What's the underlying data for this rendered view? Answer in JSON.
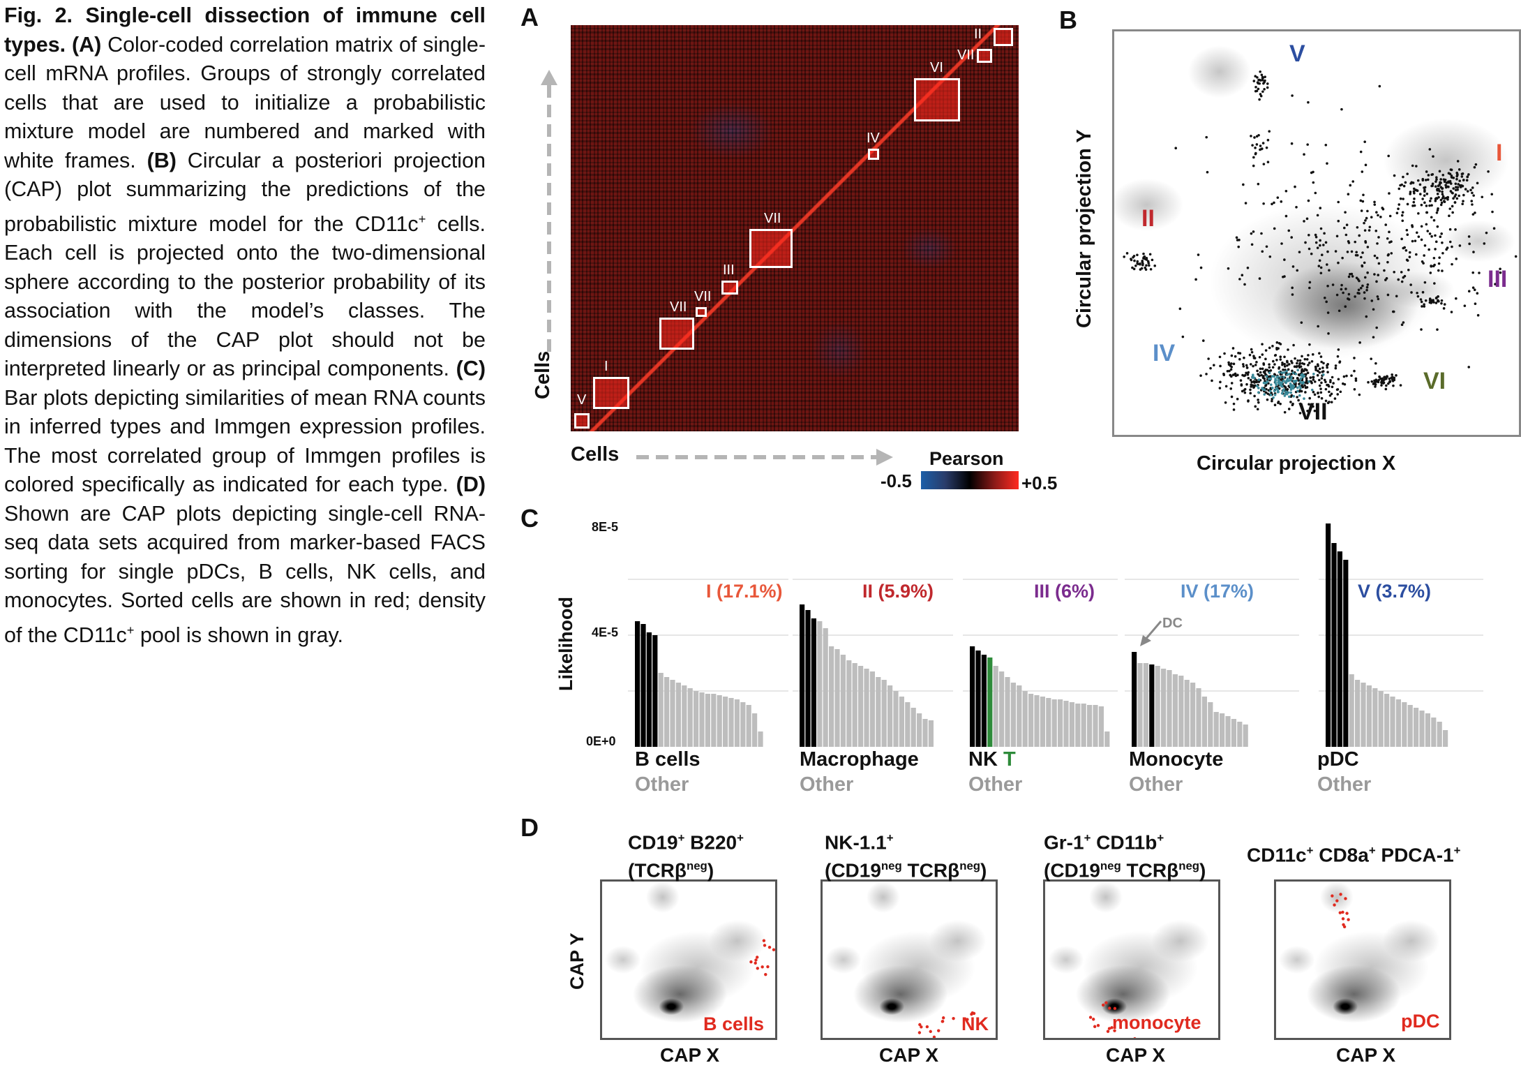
{
  "caption": {
    "fig_label": "Fig. 2.",
    "title": "Single-cell dissection of immune cell types.",
    "A_label": "(A)",
    "A_text": "Color-coded correlation matrix of single-cell mRNA profiles. Groups of strongly correlated cells that are used to initialize a probabilistic mixture model are numbered and marked with white frames.",
    "B_label": "(B)",
    "B_text_1": "Circular a posteriori projection (CAP) plot summarizing the predictions of the probabilistic mixture model for the CD11c",
    "B_sup": "+",
    "B_text_2": "cells. Each cell is projected onto the two-dimensional sphere according to the posterior probability of its association with the model’s classes. The dimensions of the CAP plot should not be interpreted linearly or as principal components.",
    "C_label": "(C)",
    "C_text": "Bar plots depicting similarities of mean RNA counts in inferred types and Immgen expression profiles. The most correlated group of Immgen profiles is colored specifically as indicated for each type.",
    "D_label": "(D)",
    "D_text_1": "Shown are CAP plots depicting single-cell RNA-seq data sets acquired from marker-based FACS sorting for single pDCs, B cells, NK cells, and monocytes. Sorted cells are shown in red; density of the CD11c",
    "D_sup": "+",
    "D_text_2": "pool is shown in gray."
  },
  "panel_labels": {
    "A": "A",
    "B": "B",
    "C": "C",
    "D": "D"
  },
  "panelA": {
    "y_label": "Cells",
    "x_label": "Cells",
    "colorbar_title": "Pearson",
    "colorbar_min": "-0.5",
    "colorbar_max": "+0.5",
    "frames": [
      "V",
      "I",
      "VII",
      "VII",
      "III",
      "VII",
      "IV",
      "VI",
      "VII",
      "II"
    ]
  },
  "panelB": {
    "x_label": "Circular projection X",
    "y_label": "Circular projection Y",
    "clusters": [
      {
        "label": "V",
        "color": "#2c4ea0"
      },
      {
        "label": "I",
        "color": "#e8573a"
      },
      {
        "label": "II",
        "color": "#c0282d"
      },
      {
        "label": "III",
        "color": "#7b2c8e"
      },
      {
        "label": "IV",
        "color": "#5b8fc9"
      },
      {
        "label": "VI",
        "color": "#5a6b2a"
      },
      {
        "label": "VII",
        "color": "#111111"
      }
    ]
  },
  "chart_data": {
    "type": "bar",
    "ylabel": "Likelihood",
    "yticks": [
      "8E-5",
      "4E-5",
      "0E+0"
    ],
    "ylim": [
      0,
      8e-05
    ],
    "grid": true,
    "groups": [
      {
        "title": "I (17.1%)",
        "title_color": "#e8573a",
        "top": "B cells",
        "top2": "",
        "bottom": "Other",
        "values": [
          4.5,
          4.4,
          4.1,
          4.0,
          2.65,
          2.5,
          2.4,
          2.3,
          2.2,
          2.1,
          2.0,
          1.95,
          1.9,
          1.9,
          1.85,
          1.8,
          1.75,
          1.7,
          1.6,
          1.5,
          1.2,
          0.55
        ],
        "colors": [
          "k",
          "k",
          "k",
          "k",
          "g",
          "g",
          "g",
          "g",
          "g",
          "g",
          "g",
          "g",
          "g",
          "g",
          "g",
          "g",
          "g",
          "g",
          "g",
          "g",
          "g",
          "g"
        ]
      },
      {
        "title": "II (5.9%)",
        "title_color": "#c0282d",
        "top": "Macrophage",
        "top2": "",
        "bottom": "Other",
        "values": [
          5.1,
          4.9,
          4.6,
          4.5,
          4.25,
          3.6,
          3.5,
          3.3,
          3.1,
          3.0,
          2.9,
          2.8,
          2.7,
          2.5,
          2.4,
          2.2,
          2.0,
          1.8,
          1.6,
          1.4,
          1.2,
          1.0,
          0.95
        ],
        "colors": [
          "k",
          "k",
          "k",
          "g",
          "g",
          "g",
          "g",
          "g",
          "g",
          "g",
          "g",
          "g",
          "g",
          "g",
          "g",
          "g",
          "g",
          "g",
          "g",
          "g",
          "g",
          "g",
          "g"
        ]
      },
      {
        "title": "III (6%)",
        "title_color": "#7b2c8e",
        "top": "NK",
        "top2": "T",
        "bottom": "Other",
        "values": [
          3.6,
          3.45,
          3.3,
          3.2,
          2.9,
          2.7,
          2.5,
          2.3,
          2.2,
          2.0,
          1.9,
          1.85,
          1.8,
          1.75,
          1.7,
          1.7,
          1.65,
          1.6,
          1.55,
          1.55,
          1.5,
          1.5,
          1.45,
          0.55
        ],
        "colors": [
          "k",
          "k",
          "k",
          "G",
          "g",
          "g",
          "g",
          "g",
          "g",
          "g",
          "g",
          "g",
          "g",
          "g",
          "g",
          "g",
          "g",
          "g",
          "g",
          "g",
          "g",
          "g",
          "g",
          "g"
        ]
      },
      {
        "title": "IV (17%)",
        "title_color": "#5b8fc9",
        "top": "Monocyte",
        "top2": "",
        "bottom": "Other",
        "values": [
          3.4,
          3.0,
          3.0,
          2.95,
          2.9,
          2.8,
          2.75,
          2.6,
          2.55,
          2.4,
          2.3,
          2.1,
          1.8,
          1.6,
          1.25,
          1.2,
          1.1,
          1.0,
          0.9,
          0.8
        ],
        "colors": [
          "k",
          "g",
          "g",
          "k",
          "g",
          "g",
          "g",
          "g",
          "g",
          "g",
          "g",
          "g",
          "g",
          "g",
          "g",
          "g",
          "g",
          "g",
          "g",
          "g"
        ]
      },
      {
        "title": "V (3.7%)",
        "title_color": "#2c4ea0",
        "top": "pDC",
        "top2": "",
        "bottom": "Other",
        "values": [
          8.0,
          7.3,
          7.0,
          6.7,
          2.6,
          2.4,
          2.3,
          2.2,
          2.1,
          2.0,
          1.9,
          1.8,
          1.7,
          1.6,
          1.5,
          1.4,
          1.3,
          1.2,
          1.05,
          0.9,
          0.6
        ],
        "colors": [
          "k",
          "k",
          "k",
          "k",
          "g",
          "g",
          "g",
          "g",
          "g",
          "g",
          "g",
          "g",
          "g",
          "g",
          "g",
          "g",
          "g",
          "g",
          "g",
          "g",
          "g"
        ]
      }
    ],
    "annotation": "DC"
  },
  "panelD": {
    "y_label": "CAP Y",
    "x_label": "CAP X",
    "plots": [
      {
        "title_line1": "CD19",
        "sup1": "+",
        "title_line1b": " B220",
        "sup1b": "+",
        "title_line2": "(TCRβ",
        "sup2": "neg",
        "title_line2b": ")",
        "tag": "B cells"
      },
      {
        "title_line1": "NK-1.1",
        "sup1": "+",
        "title_line1b": "",
        "sup1b": "",
        "title_line2": "(CD19",
        "sup2": "neg",
        "title_line2b": " TCRβ",
        "sup2b": "neg",
        "title_line2c": ")",
        "tag": "NK"
      },
      {
        "title_line1": "Gr-1",
        "sup1": "+",
        "title_line1b": " CD11b",
        "sup1b": "+",
        "title_line2": "(CD19",
        "sup2": "neg",
        "title_line2b": " TCRβ",
        "sup2b": "neg",
        "title_line2c": ")",
        "tag": "monocyte"
      },
      {
        "title_line1": "CD11c",
        "sup1": "+",
        "title_line1b": " CD8a",
        "sup1b": "+",
        "title_line1c": " PDCA-1",
        "sup1c": "+",
        "tag": "pDC"
      }
    ],
    "tag_color": "#e02a1f"
  }
}
